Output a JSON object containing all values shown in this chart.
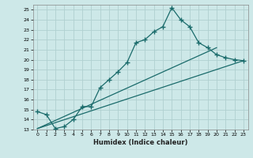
{
  "title": "",
  "xlabel": "Humidex (Indice chaleur)",
  "ylabel": "",
  "xlim": [
    -0.5,
    23.5
  ],
  "ylim": [
    13,
    25.5
  ],
  "xticks": [
    0,
    1,
    2,
    3,
    4,
    5,
    6,
    7,
    8,
    9,
    10,
    11,
    12,
    13,
    14,
    15,
    16,
    17,
    18,
    19,
    20,
    21,
    22,
    23
  ],
  "yticks": [
    13,
    14,
    15,
    16,
    17,
    18,
    19,
    20,
    21,
    22,
    23,
    24,
    25
  ],
  "bg_color": "#cde8e8",
  "grid_color": "#b0d0d0",
  "line_color": "#1a6b6b",
  "line1_x": [
    0,
    1,
    2,
    3,
    4,
    5,
    6,
    7,
    8,
    9,
    10,
    11,
    12,
    13,
    14,
    15,
    16,
    17,
    18,
    19,
    20,
    21,
    22,
    23
  ],
  "line1_y": [
    14.8,
    14.5,
    13.1,
    13.3,
    14.0,
    15.3,
    15.3,
    17.2,
    18.0,
    18.8,
    19.7,
    21.7,
    22.0,
    22.8,
    23.3,
    25.2,
    24.0,
    23.3,
    21.7,
    21.2,
    20.5,
    20.2,
    20.0,
    19.9
  ],
  "line2_x": [
    0,
    23
  ],
  "line2_y": [
    13.1,
    19.9
  ],
  "line3_x": [
    0,
    20
  ],
  "line3_y": [
    13.1,
    21.2
  ],
  "marker": "+",
  "markersize": 4,
  "markeredgewidth": 1.0,
  "linewidth": 0.9
}
